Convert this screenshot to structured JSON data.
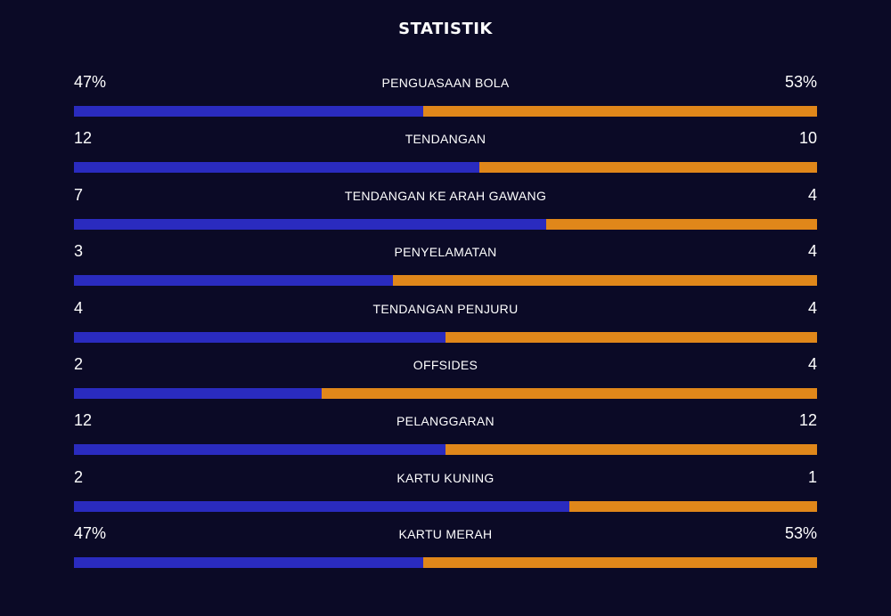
{
  "header": {
    "title": "STATISTIK"
  },
  "colors": {
    "background": "#0b0a26",
    "home": "#2a2bbf",
    "away": "#e0871a",
    "text": "#ffffff"
  },
  "stats": [
    {
      "label": "PENGUASAAN BOLA",
      "left": "47%",
      "right": "53%",
      "left_share": 0.47
    },
    {
      "label": "TENDANGAN",
      "left": "12",
      "right": "10",
      "left_share": 0.545
    },
    {
      "label": "TENDANGAN KE ARAH GAWANG",
      "left": "7",
      "right": "4",
      "left_share": 0.636
    },
    {
      "label": "PENYELAMATAN",
      "left": "3",
      "right": "4",
      "left_share": 0.429
    },
    {
      "label": "TENDANGAN PENJURU",
      "left": "4",
      "right": "4",
      "left_share": 0.5
    },
    {
      "label": "OFFSIDES",
      "left": "2",
      "right": "4",
      "left_share": 0.333
    },
    {
      "label": "PELANGGARAN",
      "left": "12",
      "right": "12",
      "left_share": 0.5
    },
    {
      "label": "KARTU KUNING",
      "left": "2",
      "right": "1",
      "left_share": 0.667
    },
    {
      "label": "KARTU MERAH",
      "left": "47%",
      "right": "53%",
      "left_share": 0.47
    }
  ]
}
